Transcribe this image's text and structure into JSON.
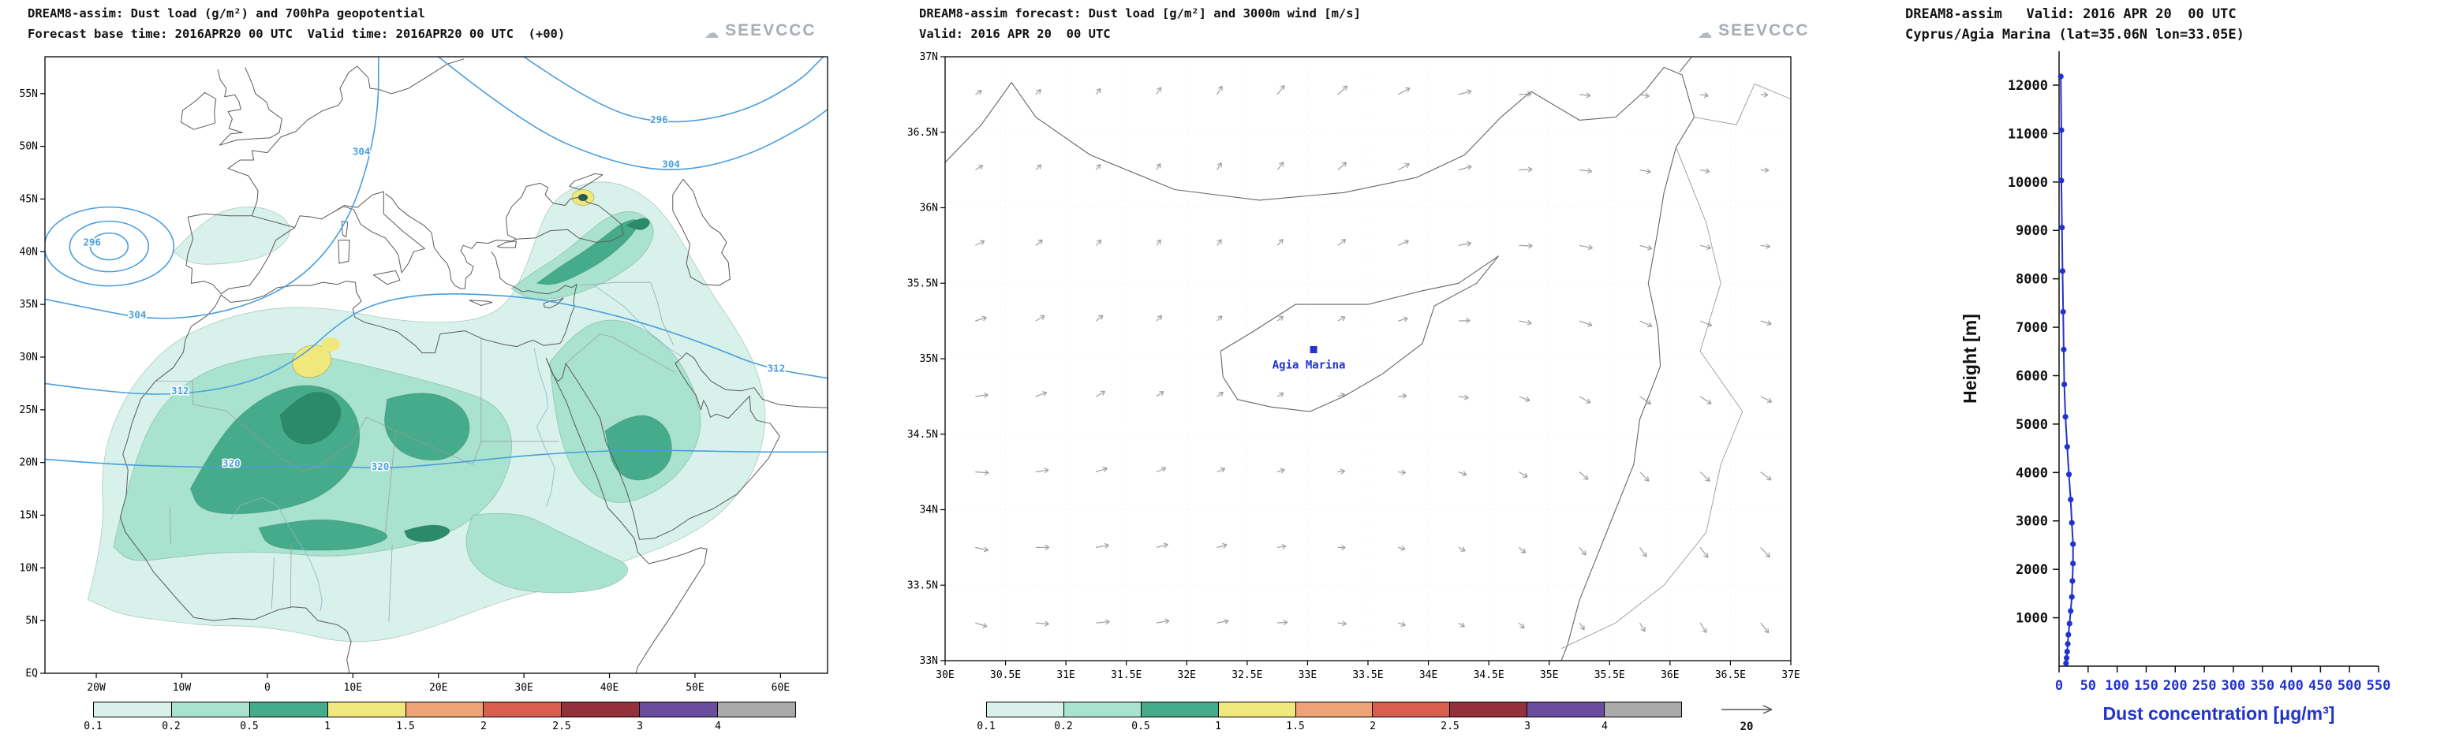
{
  "logo": {
    "text": "SEEVCCC",
    "cloud_glyph": "☁",
    "color": "#a7adb3"
  },
  "colors": {
    "accent_blue": "#2233cc",
    "contour_blue": "#4a9ede",
    "coast": "#5a5a5a",
    "border_gray": "#9a9a9a",
    "river_blue": "#8fb3c8",
    "arrow_gray": "#a0a0a0",
    "dust_dark_green": "#2b8a69",
    "dark_spot": "#1f5c49"
  },
  "colorbar": {
    "labels": [
      "0.1",
      "0.2",
      "0.5",
      "1",
      "1.5",
      "2",
      "2.5",
      "3",
      "4"
    ],
    "colors": [
      "#d8f1ea",
      "#a9e2cf",
      "#46ab8a",
      "#f0e87c",
      "#f0a277",
      "#d85f4e",
      "#93303c",
      "#6a4d9e",
      "#aaaaaa"
    ],
    "units": "g/m²"
  },
  "chart_data": [
    {
      "id": "dust-load-geopotential-map",
      "type": "heatmap",
      "title": "DREAM8-assim: Dust load (g/m²) and 700hPa geopotential",
      "subtitle": "Forecast base time: 2016APR20 00 UTC  Valid time: 2016APR20 00 UTC  (+00)",
      "legend_levels_g_m2": [
        0.1,
        0.2,
        0.5,
        1,
        1.5,
        2,
        2.5,
        3,
        4
      ],
      "geopotential_contours_dam": [
        296,
        304,
        312,
        320
      ],
      "lon_range": [
        -26,
        65.5
      ],
      "lat_range": [
        0,
        58.5
      ],
      "lon_ticks": [
        {
          "label": "20W",
          "deg": -20
        },
        {
          "label": "10W",
          "deg": -10
        },
        {
          "label": "0",
          "deg": 0
        },
        {
          "label": "10E",
          "deg": 10
        },
        {
          "label": "20E",
          "deg": 20
        },
        {
          "label": "30E",
          "deg": 30
        },
        {
          "label": "40E",
          "deg": 40
        },
        {
          "label": "50E",
          "deg": 50
        },
        {
          "label": "60E",
          "deg": 60
        }
      ],
      "lat_ticks": [
        {
          "label": "EQ",
          "deg": 0
        },
        {
          "label": "5N",
          "deg": 5
        },
        {
          "label": "10N",
          "deg": 10
        },
        {
          "label": "15N",
          "deg": 15
        },
        {
          "label": "20N",
          "deg": 20
        },
        {
          "label": "25N",
          "deg": 25
        },
        {
          "label": "30N",
          "deg": 30
        },
        {
          "label": "35N",
          "deg": 35
        },
        {
          "label": "40N",
          "deg": 40
        },
        {
          "label": "45N",
          "deg": 45
        },
        {
          "label": "50N",
          "deg": 50
        },
        {
          "label": "55N",
          "deg": 55
        }
      ],
      "contour_labels": [
        {
          "text": "296",
          "lon": -20.5,
          "lat": 40.6
        },
        {
          "text": "304",
          "lon": -15.2,
          "lat": 33.7
        },
        {
          "text": "312",
          "lon": -10.2,
          "lat": 26.5
        },
        {
          "text": "320",
          "lon": -4.2,
          "lat": 19.6
        },
        {
          "text": "320",
          "lon": 13.2,
          "lat": 19.3
        },
        {
          "text": "296",
          "lon": 45.8,
          "lat": 52.2
        },
        {
          "text": "304",
          "lon": 47.2,
          "lat": 48.0
        },
        {
          "text": "312",
          "lon": 59.5,
          "lat": 28.6
        },
        {
          "text": "304",
          "lon": 11.0,
          "lat": 49.2
        }
      ],
      "notes": "Filled dust-load contours (greens/yellow) over N Africa, Middle East and Anatolia; blue 700hPa geopotential contours with closed low west of Iberia."
    },
    {
      "id": "cyprus-dust-wind-map",
      "type": "heatmap",
      "title": "DREAM8-assim forecast: Dust load [g/m²] and 3000m wind [m/s]",
      "subtitle": "Valid: 2016 APR 20  00 UTC",
      "lon_range": [
        30,
        37
      ],
      "lat_range": [
        33,
        37
      ],
      "lon_ticks": [
        {
          "label": "30E",
          "deg": 30
        },
        {
          "label": "30.5E",
          "deg": 30.5
        },
        {
          "label": "31E",
          "deg": 31
        },
        {
          "label": "31.5E",
          "deg": 31.5
        },
        {
          "label": "32E",
          "deg": 32
        },
        {
          "label": "32.5E",
          "deg": 32.5
        },
        {
          "label": "33E",
          "deg": 33
        },
        {
          "label": "33.5E",
          "deg": 33.5
        },
        {
          "label": "34E",
          "deg": 34
        },
        {
          "label": "34.5E",
          "deg": 34.5
        },
        {
          "label": "35E",
          "deg": 35
        },
        {
          "label": "35.5E",
          "deg": 35.5
        },
        {
          "label": "36E",
          "deg": 36
        },
        {
          "label": "36.5E",
          "deg": 36.5
        },
        {
          "label": "37E",
          "deg": 37
        }
      ],
      "lat_ticks": [
        {
          "label": "33N",
          "deg": 33
        },
        {
          "label": "33.5N",
          "deg": 33.5
        },
        {
          "label": "34N",
          "deg": 34
        },
        {
          "label": "34.5N",
          "deg": 34.5
        },
        {
          "label": "35N",
          "deg": 35
        },
        {
          "label": "35.5N",
          "deg": 35.5
        },
        {
          "label": "36N",
          "deg": 36
        },
        {
          "label": "36.5N",
          "deg": 36.5
        },
        {
          "label": "37N",
          "deg": 37
        }
      ],
      "station": {
        "name": "Agia Marina",
        "lon": 33.05,
        "lat": 35.06
      },
      "wind_reference": {
        "label": "20",
        "units": "m/s"
      },
      "notes": "Dust load below lowest contour level over whole domain (white); light-gray wind arrows on 0.5° grid."
    },
    {
      "id": "dust-concentration-profile",
      "type": "line",
      "title": "DREAM8-assim   Valid: 2016 APR 20  00 UTC",
      "subtitle": "Cyprus/Agia Marina (lat=35.06N lon=33.05E)",
      "xlabel": "Dust concentration [μg/m³]",
      "ylabel": "Height [m]",
      "xlim": [
        0,
        550
      ],
      "ylim": [
        0,
        12700
      ],
      "x_ticks": [
        0,
        50,
        100,
        150,
        200,
        250,
        300,
        350,
        400,
        450,
        500,
        550
      ],
      "y_ticks": [
        1000,
        2000,
        3000,
        4000,
        5000,
        6000,
        7000,
        8000,
        9000,
        10000,
        11000,
        12000
      ],
      "series": [
        {
          "name": "dust concentration profile",
          "points_value_height": [
            [
              12,
              60
            ],
            [
              13,
              170
            ],
            [
              14,
              300
            ],
            [
              15,
              460
            ],
            [
              16,
              650
            ],
            [
              18,
              880
            ],
            [
              20,
              1140
            ],
            [
              22,
              1430
            ],
            [
              23,
              1760
            ],
            [
              24,
              2120
            ],
            [
              24,
              2520
            ],
            [
              22,
              2960
            ],
            [
              20,
              3440
            ],
            [
              17,
              3960
            ],
            [
              14,
              4530
            ],
            [
              11,
              5150
            ],
            [
              9,
              5820
            ],
            [
              8,
              6540
            ],
            [
              7,
              7320
            ],
            [
              6,
              8160
            ],
            [
              5,
              9060
            ],
            [
              4,
              10030
            ],
            [
              4,
              11070
            ],
            [
              3,
              12180
            ]
          ]
        }
      ],
      "line_color": "#2233cc",
      "legend_position": "none",
      "grid": false
    }
  ]
}
